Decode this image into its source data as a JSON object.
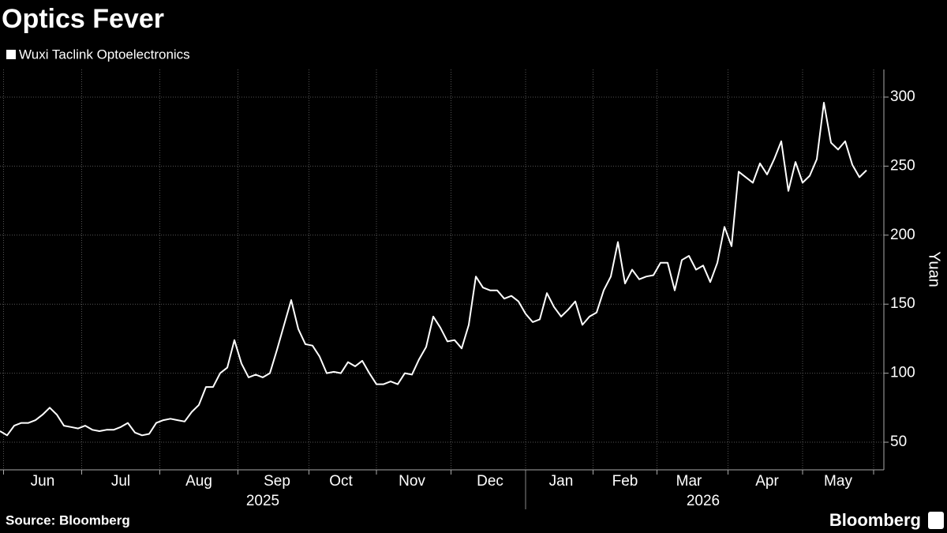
{
  "chart_data": {
    "type": "line",
    "title": "Optics Fever",
    "series": [
      {
        "name": "Wuxi Taclink Optoelectronics",
        "color": "#ffffff",
        "values": [
          58,
          55,
          62,
          64,
          64,
          66,
          70,
          75,
          70,
          62,
          61,
          60,
          62,
          59,
          58,
          59,
          59,
          61,
          64,
          57,
          55,
          56,
          64,
          66,
          67,
          66,
          65,
          72,
          77,
          90,
          90,
          100,
          104,
          124,
          107,
          97,
          99,
          97,
          100,
          117,
          135,
          153,
          132,
          121,
          120,
          112,
          100,
          101,
          100,
          108,
          105,
          109,
          100,
          92,
          92,
          94,
          92,
          100,
          99,
          110,
          119,
          141,
          133,
          123,
          124,
          118,
          135,
          170,
          162,
          160,
          160,
          154,
          156,
          152,
          143,
          137,
          139,
          158,
          148,
          141,
          146,
          152,
          135,
          141,
          144,
          160,
          170,
          195,
          165,
          175,
          168,
          170,
          171,
          180,
          180,
          160,
          182,
          185,
          175,
          178,
          166,
          180,
          206,
          192,
          246,
          242,
          238,
          252,
          244,
          255,
          268,
          232,
          253,
          238,
          243,
          255,
          296,
          267,
          262,
          268,
          251,
          242,
          247
        ]
      }
    ],
    "categories": [
      null,
      null,
      null,
      null,
      null,
      null,
      "Jun",
      null,
      null,
      null,
      null,
      null,
      null,
      null,
      null,
      null,
      null,
      "Jul",
      null,
      null,
      null,
      null,
      null,
      null,
      null,
      null,
      null,
      null,
      "Aug",
      null,
      null,
      null,
      null,
      null,
      null,
      null,
      null,
      null,
      null,
      "Sep",
      null,
      null,
      null,
      null,
      null,
      null,
      null,
      null,
      "Oct",
      null,
      null,
      null,
      null,
      null,
      null,
      null,
      null,
      null,
      "Nov",
      null,
      null,
      null,
      null,
      null,
      null,
      null,
      null,
      null,
      null,
      "Dec",
      null,
      null,
      null,
      null,
      null,
      null,
      null,
      null,
      null,
      "Jan",
      null,
      null,
      null,
      null,
      null,
      null,
      null,
      null,
      "Feb",
      null,
      null,
      null,
      null,
      null,
      null,
      null,
      null,
      "Mar",
      null,
      null,
      null,
      null,
      null,
      null,
      null,
      null,
      null,
      null,
      "Apr",
      null,
      null,
      null,
      null,
      null,
      null,
      null,
      null,
      null,
      "May",
      null,
      null,
      null,
      null
    ],
    "years": [
      null,
      null,
      null,
      null,
      null,
      null,
      null,
      null,
      null,
      null,
      null,
      null,
      null,
      null,
      null,
      null,
      null,
      null,
      null,
      null,
      null,
      null,
      null,
      null,
      null,
      null,
      null,
      null,
      null,
      null,
      null,
      null,
      null,
      null,
      null,
      null,
      null,
      "2025",
      null,
      null,
      null,
      null,
      null,
      null,
      null,
      null,
      null,
      null,
      null,
      null,
      null,
      null,
      null,
      null,
      null,
      null,
      null,
      null,
      null,
      null,
      null,
      null,
      null,
      null,
      null,
      null,
      null,
      null,
      null,
      null,
      null,
      null,
      null,
      null,
      null,
      null,
      null,
      null,
      null,
      null,
      null,
      null,
      null,
      null,
      null,
      null,
      null,
      null,
      null,
      null,
      null,
      null,
      null,
      null,
      null,
      null,
      null,
      null,
      null,
      "2026",
      null,
      null,
      null,
      null,
      null,
      null,
      null,
      null,
      null,
      null,
      null,
      null,
      null,
      null,
      null,
      null,
      null,
      null,
      null,
      null,
      null,
      null,
      null
    ],
    "y_label": "Yuan",
    "ylim": [
      30,
      320
    ],
    "yticks": [
      50,
      100,
      150,
      200,
      250,
      300
    ],
    "grid": true,
    "source": "Source: Bloomberg",
    "brand": "Bloomberg"
  }
}
